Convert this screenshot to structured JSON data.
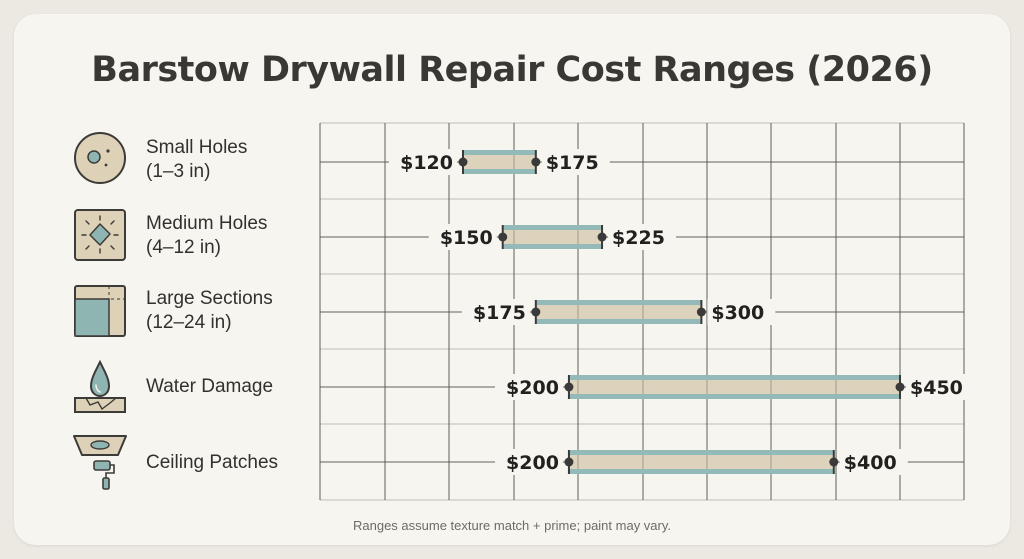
{
  "chart_data": {
    "type": "range-bar",
    "title": "Barstow Drywall Repair Cost Ranges (2026)",
    "footnote": "Ranges assume texture match + prime; paint may vary.",
    "categories": [
      {
        "line1": "Small Holes",
        "line2": "(1–3 in)",
        "icon": "small-hole-icon",
        "low": 120,
        "high": 175,
        "low_label": "$120",
        "high_label": "$175"
      },
      {
        "line1": "Medium Holes",
        "line2": "(4–12 in)",
        "icon": "medium-hole-icon",
        "low": 150,
        "high": 225,
        "low_label": "$150",
        "high_label": "$225"
      },
      {
        "line1": "Large Sections",
        "line2": "(12–24 in)",
        "icon": "large-section-icon",
        "low": 175,
        "high": 300,
        "low_label": "$175",
        "high_label": "$300"
      },
      {
        "line1": "Water Damage",
        "line2": "",
        "icon": "water-drop-icon",
        "low": 200,
        "high": 450,
        "low_label": "$200",
        "high_label": "$450"
      },
      {
        "line1": "Ceiling Patches",
        "line2": "",
        "icon": "ceiling-roller-icon",
        "low": 200,
        "high": 400,
        "low_label": "$200",
        "high_label": "$400"
      }
    ],
    "xlim": [
      120,
      450
    ],
    "grid": true,
    "colors": {
      "bar_fill": "#ddd3bd",
      "bar_edge": "#93bab8",
      "endpoint": "#3a3a3a",
      "grid": "#5a5854",
      "icon_teal": "#8fb5b3",
      "icon_tan": "#ddd1b7"
    }
  }
}
